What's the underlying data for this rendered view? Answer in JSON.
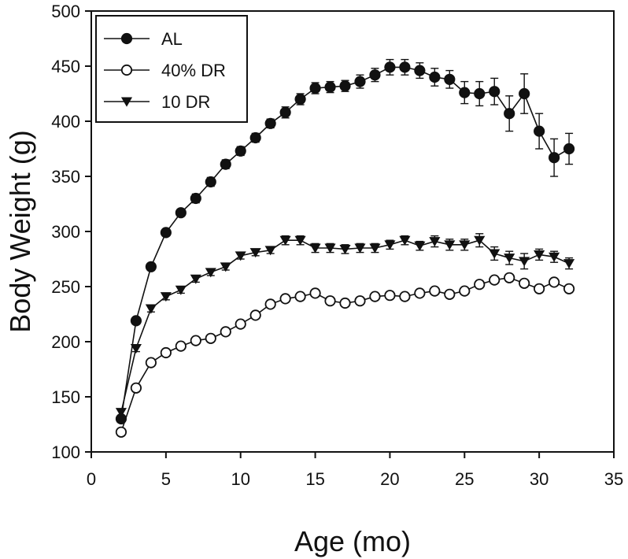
{
  "chart_data": {
    "type": "line",
    "title": "",
    "xlabel": "Age (mo)",
    "ylabel": "Body Weight (g)",
    "xlim": [
      0,
      35
    ],
    "ylim": [
      100,
      500
    ],
    "xticks": [
      0,
      5,
      10,
      15,
      20,
      25,
      30,
      35
    ],
    "yticks": [
      100,
      150,
      200,
      250,
      300,
      350,
      400,
      450,
      500
    ],
    "grid": false,
    "legend_position": "top-left",
    "series": [
      {
        "name": "AL",
        "marker": "filled-circle",
        "color": "#111111",
        "x": [
          2,
          3,
          4,
          5,
          6,
          7,
          8,
          9,
          10,
          11,
          12,
          13,
          14,
          15,
          16,
          17,
          18,
          19,
          20,
          21,
          22,
          23,
          24,
          25,
          26,
          27,
          28,
          29,
          30,
          31,
          32
        ],
        "y": [
          130,
          219,
          268,
          299,
          317,
          330,
          345,
          361,
          373,
          385,
          398,
          408,
          420,
          430,
          431,
          432,
          436,
          442,
          449,
          449,
          446,
          440,
          438,
          426,
          425,
          427,
          407,
          425,
          391,
          367,
          375
        ],
        "err": [
          3,
          3,
          3,
          3,
          3,
          4,
          4,
          4,
          4,
          4,
          4,
          5,
          5,
          5,
          5,
          5,
          6,
          6,
          7,
          7,
          7,
          8,
          8,
          10,
          11,
          12,
          16,
          18,
          16,
          17,
          14
        ]
      },
      {
        "name": "40% DR",
        "marker": "open-circle",
        "color": "#111111",
        "x": [
          2,
          3,
          4,
          5,
          6,
          7,
          8,
          9,
          10,
          11,
          12,
          13,
          14,
          15,
          16,
          17,
          18,
          19,
          20,
          21,
          22,
          23,
          24,
          25,
          26,
          27,
          28,
          29,
          30,
          31,
          32
        ],
        "y": [
          118,
          158,
          181,
          190,
          196,
          201,
          203,
          209,
          216,
          224,
          234,
          239,
          241,
          244,
          237,
          235,
          237,
          241,
          242,
          241,
          244,
          246,
          243,
          246,
          252,
          256,
          258,
          253,
          248,
          254,
          248
        ],
        "err": [
          2,
          2,
          2,
          2,
          2,
          2,
          2,
          2,
          2,
          2,
          2,
          2,
          2,
          2,
          2,
          2,
          2,
          2,
          2,
          2,
          2,
          2,
          2,
          2,
          2,
          2,
          2,
          2,
          2,
          2,
          2
        ]
      },
      {
        "name": "10 DR",
        "marker": "filled-triangle-down",
        "color": "#111111",
        "x": [
          2,
          3,
          4,
          5,
          6,
          7,
          8,
          9,
          10,
          11,
          12,
          13,
          14,
          15,
          16,
          17,
          18,
          19,
          20,
          21,
          22,
          23,
          24,
          25,
          26,
          27,
          28,
          29,
          30,
          31,
          32
        ],
        "y": [
          136,
          194,
          230,
          241,
          247,
          257,
          263,
          268,
          278,
          281,
          283,
          292,
          292,
          285,
          285,
          284,
          285,
          285,
          288,
          292,
          287,
          291,
          288,
          288,
          292,
          280,
          276,
          273,
          279,
          277,
          271
        ],
        "err": [
          3,
          3,
          3,
          3,
          3,
          3,
          3,
          3,
          3,
          3,
          3,
          4,
          4,
          4,
          4,
          4,
          4,
          4,
          4,
          4,
          4,
          5,
          5,
          5,
          6,
          6,
          6,
          7,
          5,
          5,
          5
        ]
      }
    ]
  }
}
